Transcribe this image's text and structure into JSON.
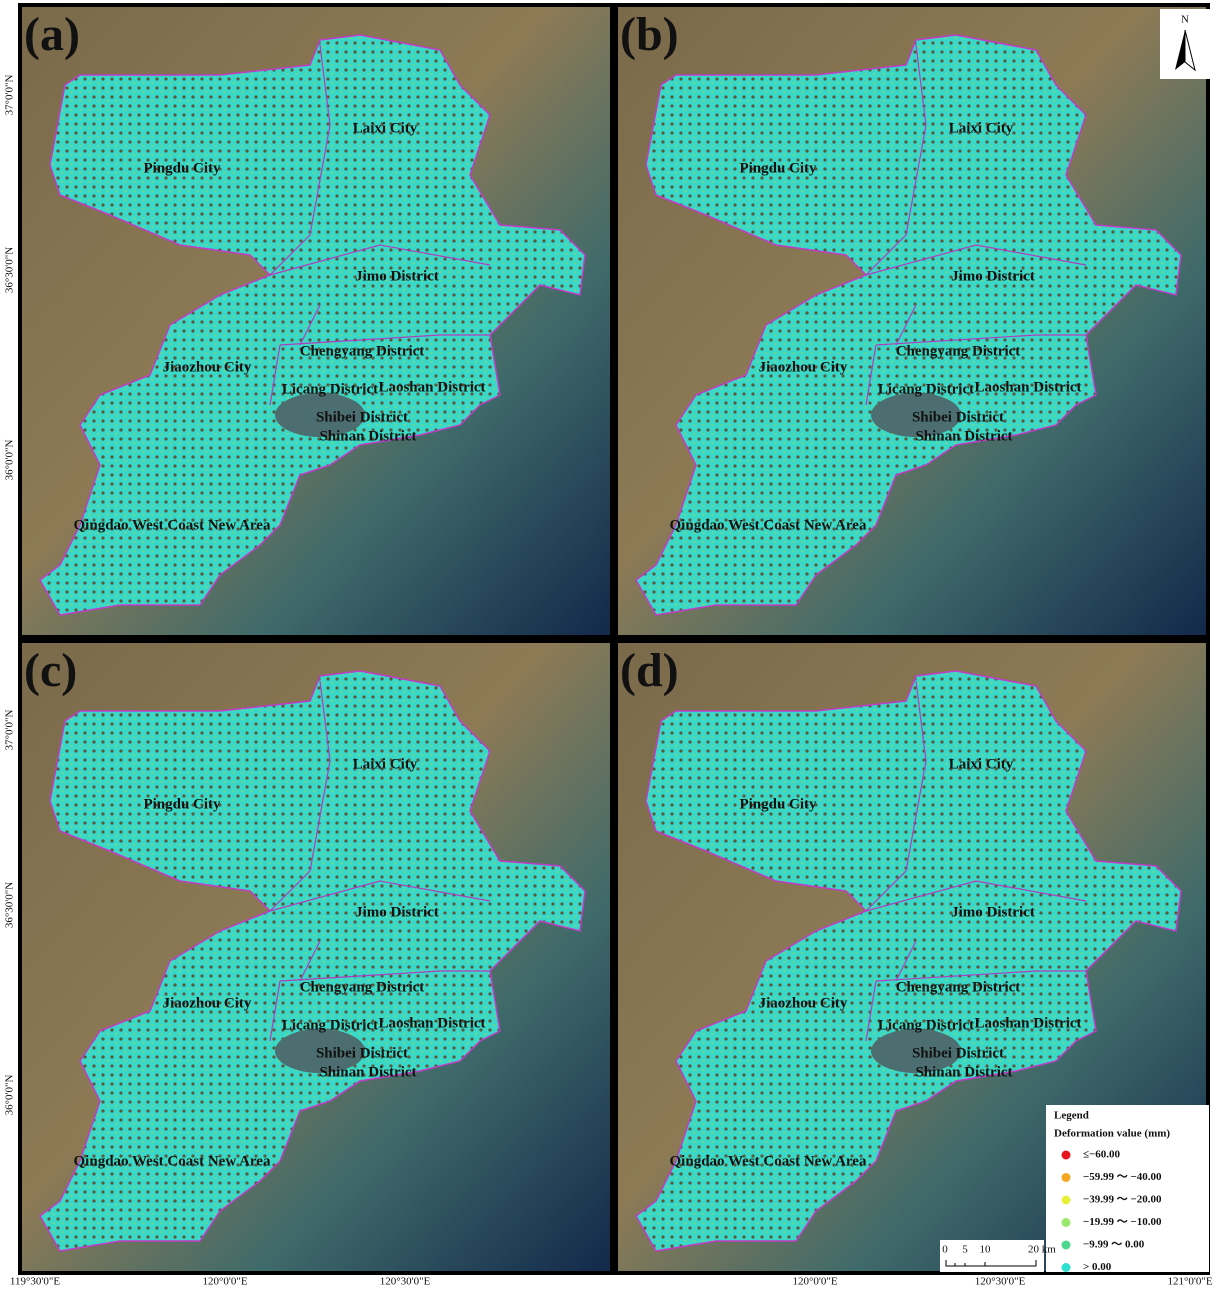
{
  "panels": [
    {
      "label": "(a)"
    },
    {
      "label": "(b)"
    },
    {
      "label": "(c)"
    },
    {
      "label": "(d)"
    }
  ],
  "districts": [
    "Pingdu City",
    "Laixi City",
    "Jimo District",
    "Chengyang District",
    "Jiaozhou City",
    "Licang District",
    "Laoshan District",
    "Shibei District",
    "Shinan District",
    "Qingdao West Coast New Area"
  ],
  "lat_labels": [
    "37°0'0\"N",
    "36°30'0\"N",
    "36°0'0\"N"
  ],
  "lon_labels_left": [
    "119°30'0\"E",
    "120°0'0\"E",
    "120°30'0\"E"
  ],
  "lon_labels_right": [
    "120°0'0\"E",
    "120°30'0\"E",
    "121°0'0\"E"
  ],
  "north_arrow": "N",
  "legend": {
    "title": "Legend",
    "subtitle": "Deformation value (mm)",
    "items": [
      {
        "label": "≤−60.00",
        "color": "#e8141b"
      },
      {
        "label": "−59.99 ～ −40.00",
        "color": "#f5a623"
      },
      {
        "label": "−39.99 ～ −20.00",
        "color": "#e6f03c"
      },
      {
        "label": "−19.99 ～ −10.00",
        "color": "#9be86a"
      },
      {
        "label": "−9.99 ～ 0.00",
        "color": "#4fd68f"
      },
      {
        "label": "> 0.00",
        "color": "#2de0d0"
      }
    ]
  },
  "scale_bar": [
    "0",
    "5",
    "10",
    "20 km"
  ]
}
